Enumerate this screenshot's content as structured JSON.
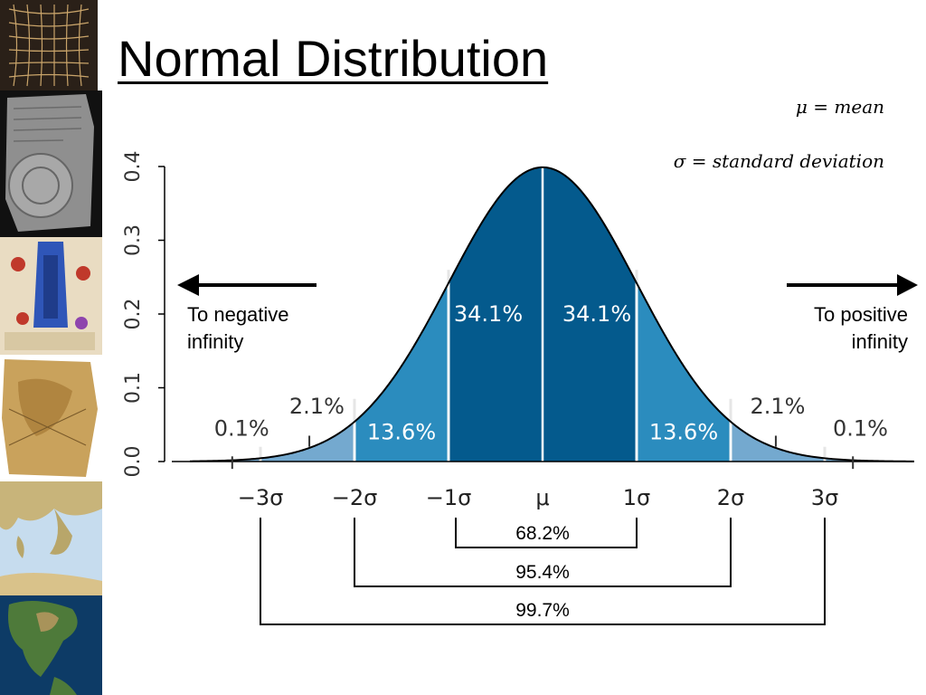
{
  "slide": {
    "title": "Normal Distribution",
    "def_mean": "μ = mean",
    "def_sd": "σ = standard deviation",
    "negative_label": [
      "To negative",
      "infinity"
    ],
    "positive_label": [
      "To positive",
      "infinity"
    ]
  },
  "sidebar": {
    "thumbnails": [
      "grid-map-thumbnail",
      "clay-tablet-map-thumbnail",
      "medieval-map-thumbnail",
      "parchment-map-thumbnail",
      "mediterranean-map-thumbnail",
      "north-america-globe-thumbnail"
    ]
  },
  "colors": {
    "dark_blue": "#045a8d",
    "mid_blue": "#2b8cbe",
    "light_blue": "#74a9cf",
    "curve": "#000000",
    "axis_text": "#333333"
  },
  "chart_data": {
    "type": "area",
    "title": "",
    "ylabel": "",
    "xlabel": "",
    "x_range": [
      -3.75,
      3.95
    ],
    "ylim": [
      0,
      0.4
    ],
    "yticks": [
      0.0,
      0.1,
      0.2,
      0.3,
      0.4
    ],
    "ytick_labels": [
      "0.0",
      "0.1",
      "0.2",
      "0.3",
      "0.4"
    ],
    "xticks": [
      -3,
      -2,
      -1,
      0,
      1,
      2,
      3
    ],
    "xtick_labels": [
      "−3σ",
      "−2σ",
      "−1σ",
      "μ",
      "1σ",
      "2σ",
      "3σ"
    ],
    "regions": [
      {
        "from": -1,
        "to": 0,
        "percent": "34.1%",
        "shade": "dark_blue"
      },
      {
        "from": 0,
        "to": 1,
        "percent": "34.1%",
        "shade": "dark_blue"
      },
      {
        "from": -2,
        "to": -1,
        "percent": "13.6%",
        "shade": "mid_blue"
      },
      {
        "from": 1,
        "to": 2,
        "percent": "13.6%",
        "shade": "mid_blue"
      },
      {
        "from": -3,
        "to": -2,
        "percent": "2.1%",
        "shade": "light_blue"
      },
      {
        "from": 2,
        "to": 3,
        "percent": "2.1%",
        "shade": "light_blue"
      },
      {
        "from": -3.75,
        "to": -3,
        "percent": "0.1%",
        "shade": "light_blue"
      },
      {
        "from": 3,
        "to": 3.95,
        "percent": "0.1%",
        "shade": "light_blue"
      }
    ],
    "intervals": [
      {
        "from": -1,
        "to": 1,
        "percent": "68.2%"
      },
      {
        "from": -2,
        "to": 2,
        "percent": "95.4%"
      },
      {
        "from": -3,
        "to": 3,
        "percent": "99.7%"
      }
    ]
  }
}
